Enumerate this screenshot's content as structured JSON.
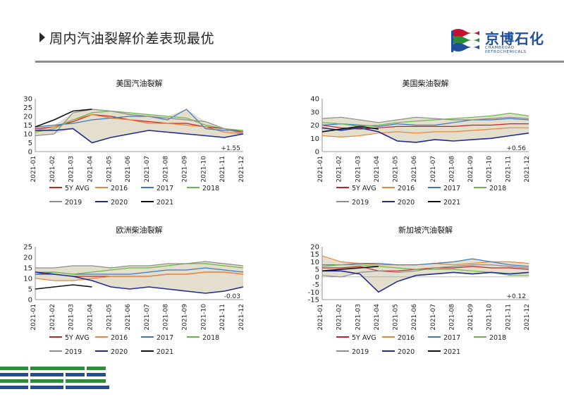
{
  "header": {
    "title": "周内汽油裂解价差表现最优",
    "logo_text": "京博石化",
    "logo_sub": "CHAMBROAD PETROCHEMICALS",
    "logo_colors": [
      "#1f4e9a",
      "#2e8b3a",
      "#c8102e"
    ]
  },
  "series_names": [
    "5Y AVG",
    "2016",
    "2017",
    "2018",
    "2019",
    "2020",
    "2021"
  ],
  "series_colors": [
    "#c0232b",
    "#e8873a",
    "#3a78c2",
    "#6bb84a",
    "#8c8c8c",
    "#1d2a9a",
    "#111111"
  ],
  "band_color": "#d8d0b8",
  "months": [
    "2021-01",
    "2021-02",
    "2021-03",
    "2021-04",
    "2021-05",
    "2021-06",
    "2021-07",
    "2021-08",
    "2021-09",
    "2021-10",
    "2021-11",
    "2021-12"
  ],
  "chart_data": [
    {
      "type": "line",
      "title": "美国汽油裂解",
      "ylim": [
        0,
        30
      ],
      "yticks": [
        "0",
        "5",
        "10",
        "15",
        "20",
        "25",
        "30"
      ],
      "annotation": "+1.55",
      "series": [
        {
          "name": "5Y AVG",
          "values": [
            13,
            14,
            17,
            21,
            20,
            18,
            17,
            16,
            16,
            14,
            13,
            11
          ]
        },
        {
          "name": "2016",
          "values": [
            12,
            14,
            18,
            21,
            19,
            18,
            16,
            16,
            15,
            14,
            11,
            10
          ]
        },
        {
          "name": "2017",
          "values": [
            14,
            15,
            16,
            18,
            19,
            20,
            20,
            18,
            24,
            13,
            12,
            12
          ]
        },
        {
          "name": "2018",
          "values": [
            11,
            13,
            18,
            22,
            23,
            22,
            21,
            20,
            19,
            15,
            13,
            12
          ]
        },
        {
          "name": "2019",
          "values": [
            9,
            10,
            22,
            24,
            23,
            21,
            20,
            19,
            18,
            17,
            13,
            10
          ]
        },
        {
          "name": "2020",
          "values": [
            12,
            12,
            13,
            5,
            8,
            10,
            12,
            11,
            10,
            9,
            8,
            10
          ]
        },
        {
          "name": "2021",
          "values": [
            14,
            18,
            23,
            24
          ]
        }
      ]
    },
    {
      "type": "line",
      "title": "美国柴油裂解",
      "ylim": [
        0,
        40
      ],
      "yticks": [
        "0",
        "10",
        "20",
        "30",
        "40"
      ],
      "annotation": "+0.56",
      "series": [
        {
          "name": "5Y AVG",
          "values": [
            20,
            18,
            17,
            18,
            19,
            19,
            19,
            19,
            20,
            20,
            21,
            21
          ]
        },
        {
          "name": "2016",
          "values": [
            12,
            11,
            12,
            14,
            15,
            14,
            15,
            15,
            16,
            17,
            18,
            18
          ]
        },
        {
          "name": "2017",
          "values": [
            20,
            21,
            20,
            19,
            21,
            20,
            20,
            22,
            24,
            24,
            25,
            24
          ]
        },
        {
          "name": "2018",
          "values": [
            22,
            21,
            19,
            20,
            22,
            23,
            24,
            25,
            26,
            27,
            29,
            27
          ]
        },
        {
          "name": "2019",
          "values": [
            25,
            26,
            24,
            22,
            24,
            26,
            25,
            24,
            24,
            25,
            26,
            25
          ]
        },
        {
          "name": "2020",
          "values": [
            18,
            16,
            18,
            15,
            8,
            7,
            9,
            8,
            9,
            10,
            12,
            14
          ]
        },
        {
          "name": "2021",
          "values": [
            15,
            17,
            19,
            17
          ]
        }
      ]
    },
    {
      "type": "line",
      "title": "欧洲柴油裂解",
      "ylim": [
        0,
        25
      ],
      "yticks": [
        "0",
        "5",
        "10",
        "15",
        "20",
        "25"
      ],
      "annotation": "-0.03",
      "series": [
        {
          "name": "5Y AVG",
          "values": [
            12,
            12,
            11,
            11,
            11,
            11,
            11,
            12,
            12,
            13,
            13,
            12
          ]
        },
        {
          "name": "2016",
          "values": [
            10,
            9,
            9,
            10,
            11,
            11,
            11,
            12,
            12,
            13,
            13,
            12
          ]
        },
        {
          "name": "2017",
          "values": [
            12,
            13,
            12,
            12,
            12,
            12,
            13,
            14,
            14,
            15,
            14,
            13
          ]
        },
        {
          "name": "2018",
          "values": [
            13,
            13,
            12,
            13,
            14,
            15,
            15,
            16,
            17,
            17,
            16,
            15
          ]
        },
        {
          "name": "2019",
          "values": [
            15,
            15,
            16,
            16,
            15,
            16,
            16,
            17,
            17,
            18,
            17,
            16
          ]
        },
        {
          "name": "2020",
          "values": [
            13,
            12,
            11,
            9,
            6,
            5,
            6,
            5,
            4,
            3,
            4,
            6
          ]
        },
        {
          "name": "2021",
          "values": [
            5,
            6,
            7,
            6
          ]
        }
      ]
    },
    {
      "type": "line",
      "title": "新加坡汽油裂解",
      "ylim": [
        -15,
        20
      ],
      "yticks": [
        "-15",
        "-10",
        "-5",
        "0",
        "5",
        "10",
        "15",
        "20"
      ],
      "annotation": "+0.12",
      "series": [
        {
          "name": "5Y AVG",
          "values": [
            6,
            6,
            7,
            4,
            4,
            5,
            6,
            6,
            7,
            6,
            6,
            5
          ]
        },
        {
          "name": "2016",
          "values": [
            14,
            10,
            9,
            8,
            8,
            8,
            9,
            8,
            9,
            10,
            10,
            9
          ]
        },
        {
          "name": "2017",
          "values": [
            8,
            8,
            9,
            9,
            8,
            8,
            9,
            10,
            12,
            10,
            8,
            7
          ]
        },
        {
          "name": "2018",
          "values": [
            7,
            8,
            8,
            7,
            6,
            5,
            5,
            5,
            4,
            3,
            1,
            1
          ]
        },
        {
          "name": "2019",
          "values": [
            1,
            0,
            3,
            4,
            3,
            4,
            6,
            7,
            8,
            8,
            7,
            6
          ]
        },
        {
          "name": "2020",
          "values": [
            4,
            4,
            2,
            -10,
            -3,
            1,
            2,
            3,
            2,
            3,
            2,
            3
          ]
        },
        {
          "name": "2021",
          "values": [
            4,
            5,
            6,
            7
          ]
        }
      ]
    }
  ]
}
